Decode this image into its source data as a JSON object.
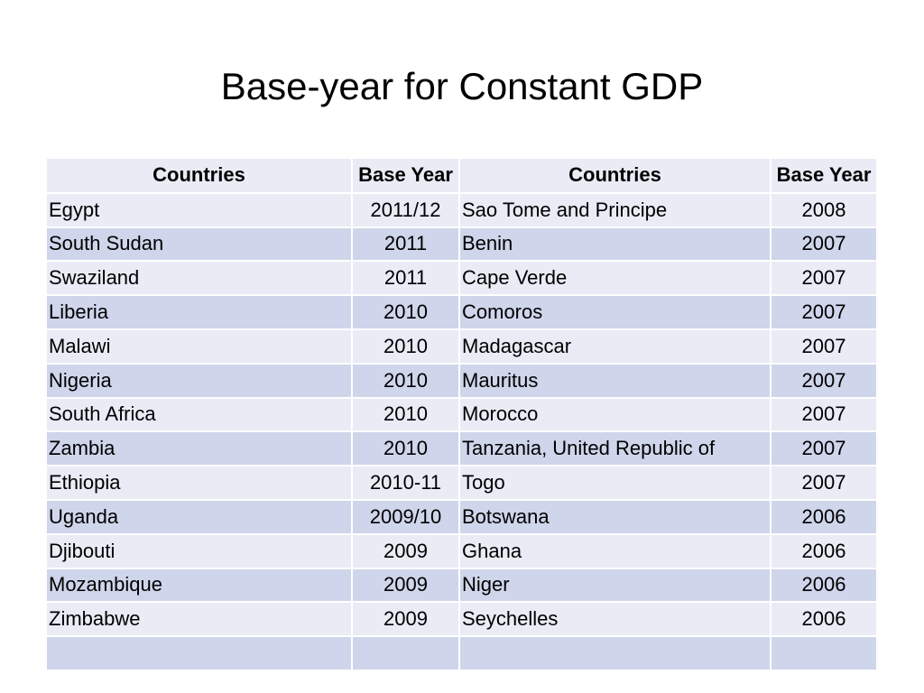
{
  "slide": {
    "title": "Base-year for Constant GDP"
  },
  "table": {
    "headers": [
      "Countries",
      "Base Year",
      "Countries",
      "Base Year"
    ],
    "rows": [
      {
        "country_left": "Egypt",
        "year_left": "2011/12",
        "country_right": "Sao Tome and Principe",
        "year_right": "2008"
      },
      {
        "country_left": "South Sudan",
        "year_left": "2011",
        "country_right": "Benin",
        "year_right": "2007"
      },
      {
        "country_left": "Swaziland",
        "year_left": "2011",
        "country_right": "Cape Verde",
        "year_right": "2007"
      },
      {
        "country_left": "Liberia",
        "year_left": "2010",
        "country_right": "Comoros",
        "year_right": "2007"
      },
      {
        "country_left": "Malawi",
        "year_left": "2010",
        "country_right": "Madagascar",
        "year_right": "2007"
      },
      {
        "country_left": "Nigeria",
        "year_left": "2010",
        "country_right": "Mauritus",
        "year_right": "2007"
      },
      {
        "country_left": "South Africa",
        "year_left": "2010",
        "country_right": "Morocco",
        "year_right": "2007"
      },
      {
        "country_left": "Zambia",
        "year_left": "2010",
        "country_right": "Tanzania, United Republic of",
        "year_right": "2007"
      },
      {
        "country_left": "Ethiopia",
        "year_left": "2010-11",
        "country_right": "Togo",
        "year_right": "2007"
      },
      {
        "country_left": "Uganda",
        "year_left": "2009/10",
        "country_right": "Botswana",
        "year_right": "2006"
      },
      {
        "country_left": "Djibouti",
        "year_left": "2009",
        "country_right": "Ghana",
        "year_right": "2006"
      },
      {
        "country_left": "Mozambique",
        "year_left": "2009",
        "country_right": "Niger",
        "year_right": "2006"
      },
      {
        "country_left": "Zimbabwe",
        "year_left": "2009",
        "country_right": "Seychelles",
        "year_right": "2006"
      },
      {
        "country_left": "",
        "year_left": "",
        "country_right": "",
        "year_right": ""
      }
    ]
  },
  "colors": {
    "row_light": "#e9ebf5",
    "row_dark": "#cfd5ea"
  }
}
